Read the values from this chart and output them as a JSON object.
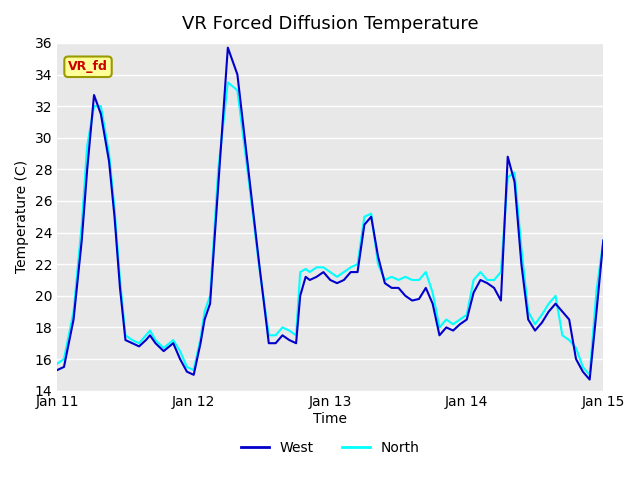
{
  "title": "VR Forced Diffusion Temperature",
  "ylabel": "Temperature (C)",
  "xlabel": "Time",
  "ylim": [
    14,
    36
  ],
  "xlim": [
    0,
    4.0
  ],
  "yticks": [
    14,
    16,
    18,
    20,
    22,
    24,
    26,
    28,
    30,
    32,
    34,
    36
  ],
  "xtick_positions": [
    0,
    1,
    2,
    3,
    4
  ],
  "xtick_labels": [
    "Jan 11",
    "Jan 12",
    "Jan 13",
    "Jan 14",
    "Jan 15"
  ],
  "bg_color": "#e8e8e8",
  "fig_color": "#ffffff",
  "grid_color": "#ffffff",
  "line_west_color": "#0000cc",
  "line_north_color": "#00ffff",
  "label_text": "VR_fd",
  "label_bg": "#ffff99",
  "label_fg": "#cc0000",
  "legend_west": "West",
  "legend_north": "North",
  "west_x": [
    0.0,
    0.05,
    0.12,
    0.18,
    0.22,
    0.27,
    0.32,
    0.38,
    0.42,
    0.46,
    0.5,
    0.55,
    0.6,
    0.65,
    0.68,
    0.72,
    0.78,
    0.85,
    0.9,
    0.95,
    1.0,
    1.05,
    1.08,
    1.12,
    1.18,
    1.25,
    1.32,
    1.4,
    1.48,
    1.55,
    1.6,
    1.65,
    1.7,
    1.75,
    1.78,
    1.82,
    1.85,
    1.9,
    1.95,
    2.0,
    2.05,
    2.1,
    2.15,
    2.2,
    2.25,
    2.3,
    2.35,
    2.4,
    2.45,
    2.5,
    2.55,
    2.6,
    2.65,
    2.7,
    2.75,
    2.8,
    2.85,
    2.9,
    2.95,
    3.0,
    3.05,
    3.1,
    3.15,
    3.2,
    3.25,
    3.3,
    3.35,
    3.4,
    3.45,
    3.5,
    3.55,
    3.6,
    3.65,
    3.7,
    3.75,
    3.8,
    3.85,
    3.9,
    3.95,
    4.0
  ],
  "west_y": [
    15.3,
    15.5,
    18.5,
    23.5,
    28.0,
    32.7,
    31.5,
    28.5,
    25.0,
    20.5,
    17.2,
    17.0,
    16.8,
    17.2,
    17.5,
    17.0,
    16.5,
    17.0,
    16.0,
    15.2,
    15.0,
    17.0,
    18.5,
    19.5,
    27.0,
    35.7,
    34.0,
    28.0,
    22.0,
    17.0,
    17.0,
    17.5,
    17.2,
    17.0,
    20.0,
    21.2,
    21.0,
    21.2,
    21.5,
    21.0,
    20.8,
    21.0,
    21.5,
    21.5,
    24.5,
    25.0,
    22.5,
    20.8,
    20.5,
    20.5,
    20.0,
    19.7,
    19.8,
    20.5,
    19.5,
    17.5,
    18.0,
    17.8,
    18.2,
    18.5,
    20.2,
    21.0,
    20.8,
    20.5,
    19.7,
    28.8,
    27.2,
    22.0,
    18.5,
    17.8,
    18.3,
    19.0,
    19.5,
    19.0,
    18.5,
    16.0,
    15.2,
    14.7,
    19.0,
    23.5
  ],
  "north_x": [
    0.0,
    0.05,
    0.12,
    0.18,
    0.22,
    0.27,
    0.32,
    0.38,
    0.42,
    0.46,
    0.5,
    0.55,
    0.6,
    0.65,
    0.68,
    0.72,
    0.78,
    0.85,
    0.9,
    0.95,
    1.0,
    1.05,
    1.08,
    1.12,
    1.18,
    1.25,
    1.32,
    1.4,
    1.48,
    1.55,
    1.6,
    1.65,
    1.7,
    1.75,
    1.78,
    1.82,
    1.85,
    1.9,
    1.95,
    2.0,
    2.05,
    2.1,
    2.15,
    2.2,
    2.25,
    2.3,
    2.35,
    2.4,
    2.45,
    2.5,
    2.55,
    2.6,
    2.65,
    2.7,
    2.75,
    2.8,
    2.85,
    2.9,
    2.95,
    3.0,
    3.05,
    3.1,
    3.15,
    3.2,
    3.25,
    3.3,
    3.35,
    3.4,
    3.45,
    3.5,
    3.55,
    3.6,
    3.65,
    3.7,
    3.75,
    3.8,
    3.85,
    3.9,
    3.95,
    4.0
  ],
  "north_y": [
    15.7,
    16.0,
    19.0,
    24.5,
    29.5,
    32.0,
    32.0,
    29.0,
    25.5,
    21.0,
    17.5,
    17.2,
    17.0,
    17.5,
    17.8,
    17.2,
    16.7,
    17.2,
    16.5,
    15.5,
    15.3,
    17.3,
    19.0,
    20.0,
    28.0,
    33.5,
    33.0,
    27.5,
    21.8,
    17.5,
    17.5,
    18.0,
    17.8,
    17.5,
    21.5,
    21.7,
    21.5,
    21.8,
    21.8,
    21.5,
    21.2,
    21.5,
    21.8,
    22.0,
    25.0,
    25.2,
    22.0,
    21.0,
    21.2,
    21.0,
    21.2,
    21.0,
    21.0,
    21.5,
    20.2,
    18.0,
    18.5,
    18.2,
    18.5,
    18.8,
    21.0,
    21.5,
    21.0,
    21.0,
    21.5,
    27.5,
    27.8,
    23.0,
    19.0,
    18.2,
    18.8,
    19.5,
    20.0,
    17.5,
    17.2,
    16.7,
    15.5,
    15.0,
    20.3,
    23.5
  ]
}
